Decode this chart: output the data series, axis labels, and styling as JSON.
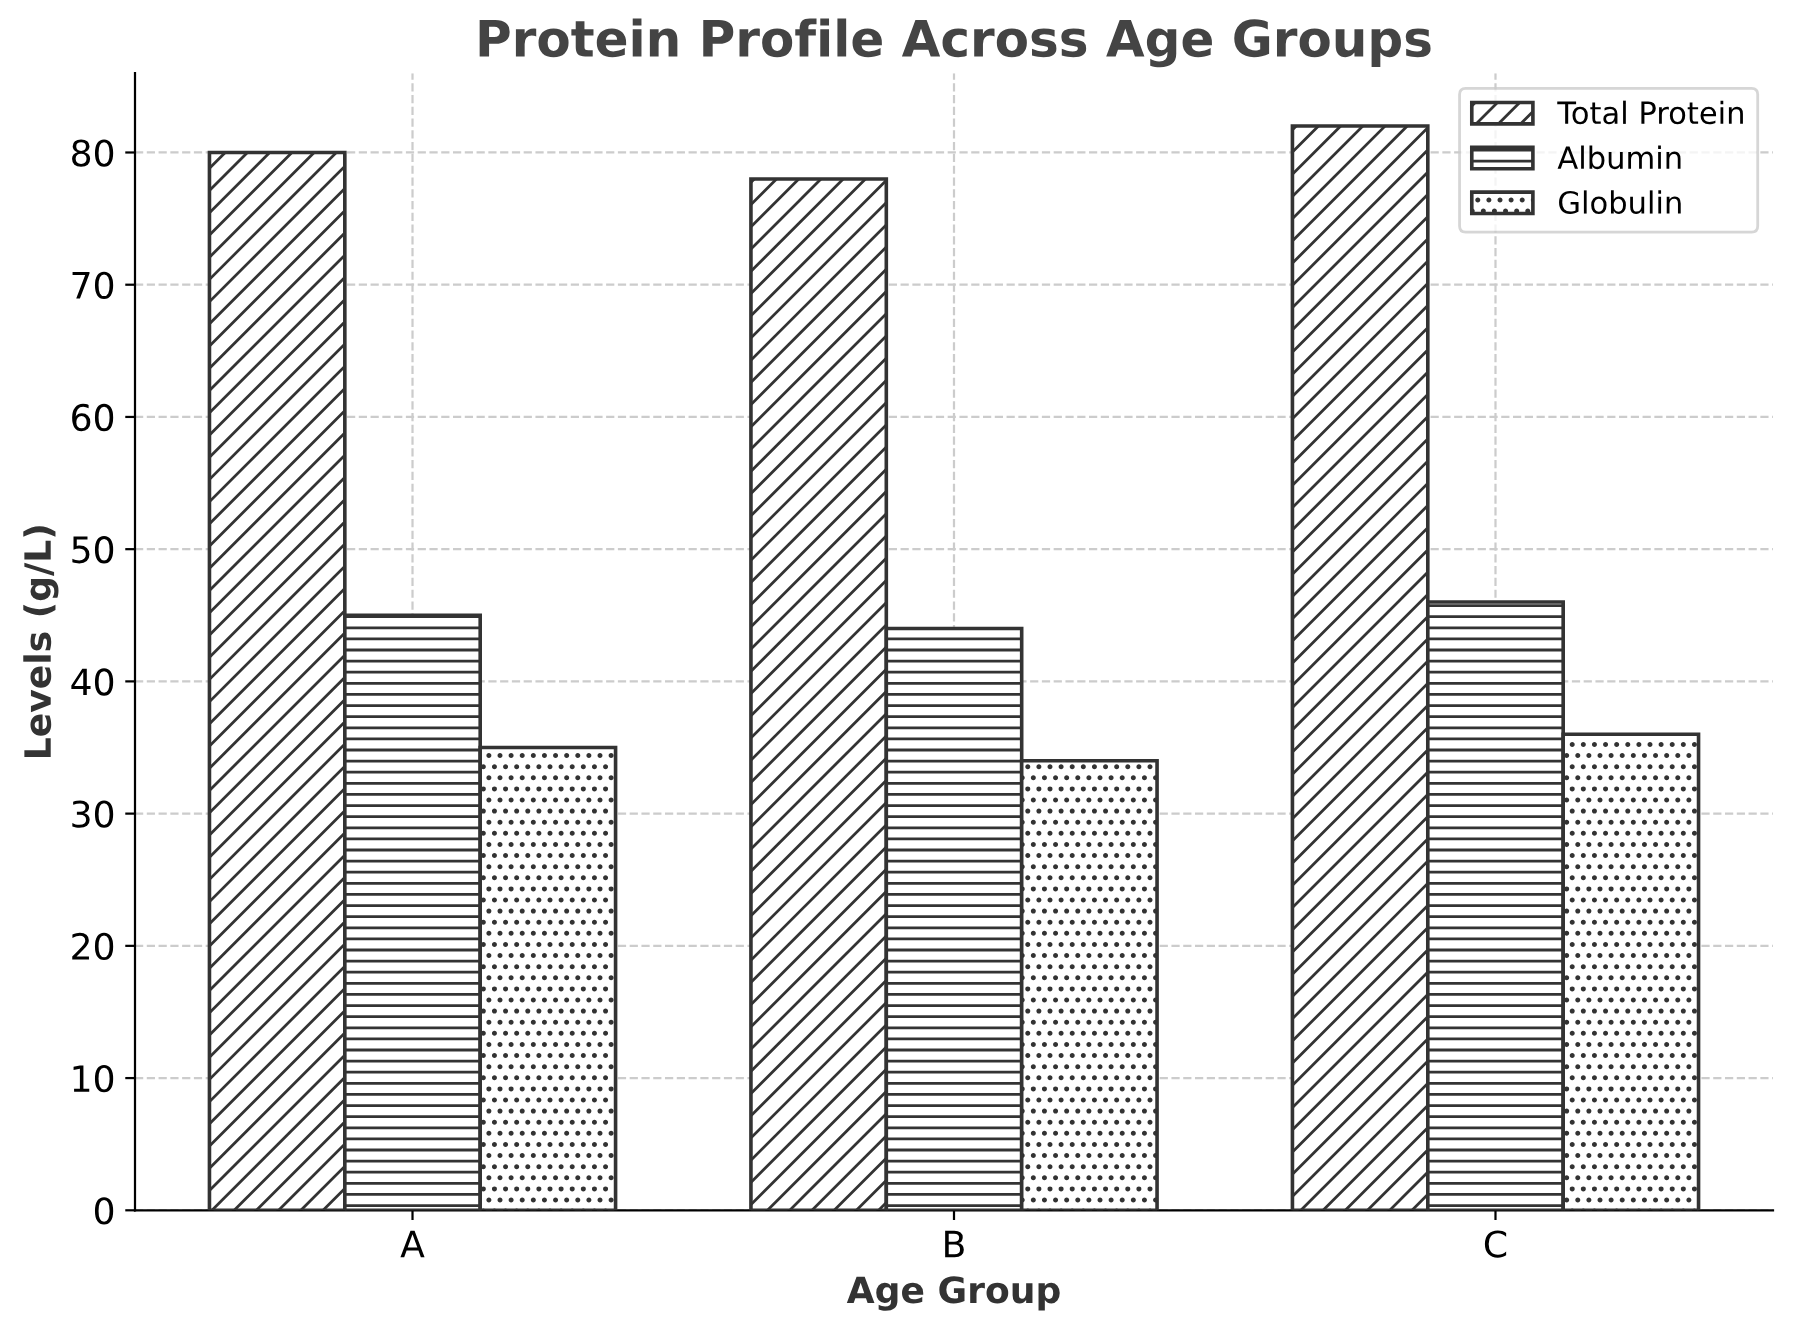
{
  "chart_data": {
    "type": "bar",
    "title": "Protein Profile Across Age Groups",
    "xlabel": "Age Group",
    "ylabel": "Levels (g/L)",
    "categories": [
      "A",
      "B",
      "C"
    ],
    "series": [
      {
        "name": "Total Protein",
        "color": "#333333",
        "values": [
          80,
          78,
          82
        ]
      },
      {
        "name": "Albumin",
        "color": "#333333",
        "values": [
          45,
          44,
          46
        ]
      },
      {
        "name": "Globulin",
        "color": "#333333",
        "values": [
          35,
          34,
          36
        ]
      }
    ],
    "ylim": [
      0,
      86
    ],
    "yticks": [
      0,
      10,
      20,
      30,
      40,
      50,
      60,
      70,
      80
    ],
    "grid": true,
    "legend": "top right"
  }
}
